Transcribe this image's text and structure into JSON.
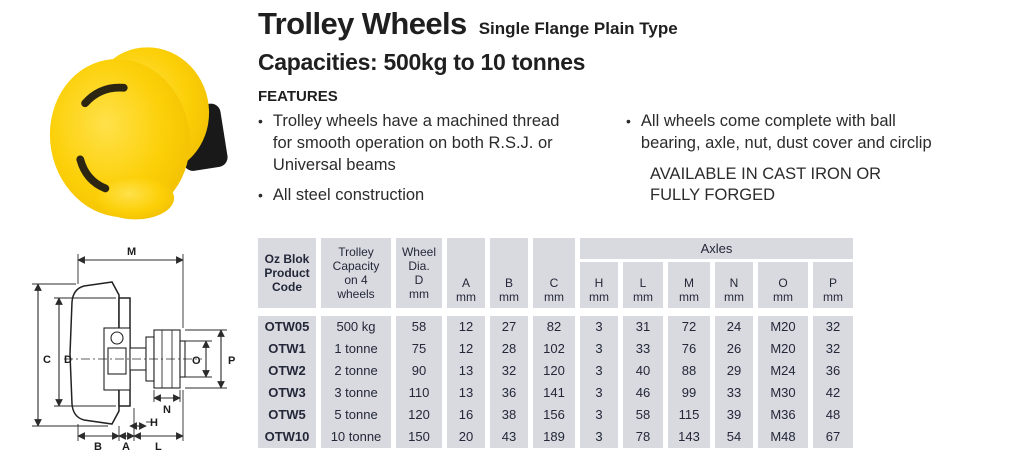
{
  "colors": {
    "wheel_yellow": "#f9cf00",
    "hub_black": "#1a1a1a",
    "table_cell_bg": "#d8dae0",
    "table_text": "#232738"
  },
  "header": {
    "title": "Trolley Wheels",
    "subtitle": "Single Flange Plain Type",
    "capacities": "Capacities: 500kg to 10 tonnes"
  },
  "features": {
    "heading": "FEATURES",
    "bullet_glyph": "•",
    "left": [
      "Trolley wheels have a machined thread\nfor smooth operation on both R.S.J. or\nUniversal beams",
      "All steel construction"
    ],
    "right": [
      "All wheels come complete with ball\nbearing, axle, nut, dust cover and circlip"
    ],
    "note": [
      "AVAILABLE IN CAST IRON OR",
      "FULLY FORGED"
    ]
  },
  "diagram": {
    "labels": {
      "m": "M",
      "c": "C",
      "d": "D",
      "o": "O",
      "p": "P",
      "n": "N",
      "h": "H",
      "b": "B",
      "a": "A",
      "l": "L"
    }
  },
  "table": {
    "headers": [
      "Oz Blok\nProduct\nCode",
      "Trolley\nCapacity\non 4\nwheels",
      "Wheel\nDia.\nD\nmm",
      "A\nmm",
      "B\nmm",
      "C\nmm"
    ],
    "axles_label": "Axles",
    "subheaders": [
      "H\nmm",
      "L\nmm",
      "M\nmm",
      "N\nmm",
      "O\nmm",
      "P\nmm"
    ],
    "rows": [
      [
        "OTW05",
        "500 kg",
        "58",
        "12",
        "27",
        "82",
        "3",
        "31",
        "72",
        "24",
        "M20",
        "32"
      ],
      [
        "OTW1",
        "1 tonne",
        "75",
        "12",
        "28",
        "102",
        "3",
        "33",
        "76",
        "26",
        "M20",
        "32"
      ],
      [
        "OTW2",
        "2 tonne",
        "90",
        "13",
        "32",
        "120",
        "3",
        "40",
        "88",
        "29",
        "M24",
        "36"
      ],
      [
        "OTW3",
        "3 tonne",
        "110",
        "13",
        "36",
        "141",
        "3",
        "46",
        "99",
        "33",
        "M30",
        "42"
      ],
      [
        "OTW5",
        "5 tonne",
        "120",
        "16",
        "38",
        "156",
        "3",
        "58",
        "115",
        "39",
        "M36",
        "48"
      ],
      [
        "OTW10",
        "10 tonne",
        "150",
        "20",
        "43",
        "189",
        "3",
        "78",
        "143",
        "54",
        "M48",
        "67"
      ]
    ]
  }
}
